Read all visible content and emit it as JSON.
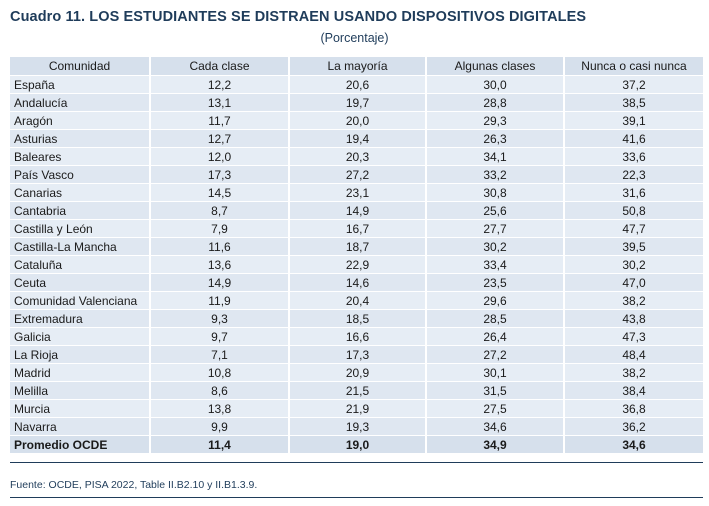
{
  "title": "Cuadro 11. LOS ESTUDIANTES SE DISTRAEN USANDO DISPOSITIVOS DIGITALES",
  "subtitle": "(Porcentaje)",
  "columns": [
    "Comunidad",
    "Cada clase",
    "La mayoría",
    "Algunas clases",
    "Nunca o casi nunca"
  ],
  "rows": [
    [
      "España",
      "12,2",
      "20,6",
      "30,0",
      "37,2"
    ],
    [
      "Andalucía",
      "13,1",
      "19,7",
      "28,8",
      "38,5"
    ],
    [
      "Aragón",
      "11,7",
      "20,0",
      "29,3",
      "39,1"
    ],
    [
      "Asturias",
      "12,7",
      "19,4",
      "26,3",
      "41,6"
    ],
    [
      "Baleares",
      "12,0",
      "20,3",
      "34,1",
      "33,6"
    ],
    [
      "País Vasco",
      "17,3",
      "27,2",
      "33,2",
      "22,3"
    ],
    [
      "Canarias",
      "14,5",
      "23,1",
      "30,8",
      "31,6"
    ],
    [
      "Cantabria",
      "8,7",
      "14,9",
      "25,6",
      "50,8"
    ],
    [
      "Castilla y León",
      "7,9",
      "16,7",
      "27,7",
      "47,7"
    ],
    [
      "Castilla-La Mancha",
      "11,6",
      "18,7",
      "30,2",
      "39,5"
    ],
    [
      "Cataluña",
      "13,6",
      "22,9",
      "33,4",
      "30,2"
    ],
    [
      "Ceuta",
      "14,9",
      "14,6",
      "23,5",
      "47,0"
    ],
    [
      "Comunidad Valenciana",
      "11,9",
      "20,4",
      "29,6",
      "38,2"
    ],
    [
      "Extremadura",
      "9,3",
      "18,5",
      "28,5",
      "43,8"
    ],
    [
      "Galicia",
      "9,7",
      "16,6",
      "26,4",
      "47,3"
    ],
    [
      "La Rioja",
      "7,1",
      "17,3",
      "27,2",
      "48,4"
    ],
    [
      "Madrid",
      "10,8",
      "20,9",
      "30,1",
      "38,2"
    ],
    [
      "Melilla",
      "8,6",
      "21,5",
      "31,5",
      "38,4"
    ],
    [
      "Murcia",
      "13,8",
      "21,9",
      "27,5",
      "36,8"
    ],
    [
      "Navarra",
      "9,9",
      "19,3",
      "34,6",
      "36,2"
    ]
  ],
  "total_row": [
    "Promedio OCDE",
    "11,4",
    "19,0",
    "34,9",
    "34,6"
  ],
  "source": "Fuente: OCDE, PISA 2022, Table II.B2.10 y II.B1.3.9.",
  "colors": {
    "title": "#1f3c5a",
    "header_bg": "#d6e0ec",
    "row_bg": "#e6edf5"
  }
}
